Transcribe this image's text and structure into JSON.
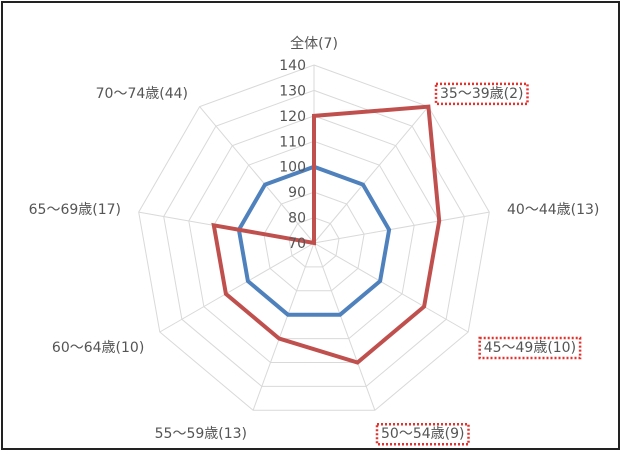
{
  "chart_data": {
    "type": "radar",
    "categories": [
      "全体(7)",
      "35～39歳(2)",
      "40～44歳(13)",
      "45～49歳(10)",
      "50～54歳(9)",
      "55～59歳(13)",
      "60～64歳(10)",
      "65～69歳(17)",
      "70～74歳(44)"
    ],
    "highlighted_categories": [
      1,
      3,
      4
    ],
    "ticks": [
      70,
      80,
      90,
      100,
      110,
      120,
      130,
      140
    ],
    "rlim": [
      70,
      140
    ],
    "grid": true,
    "series": [
      {
        "color": "#4f81bd",
        "values": [
          100,
          100,
          100,
          100,
          100,
          100,
          100,
          100,
          100
        ]
      },
      {
        "color": "#c0504d",
        "values": [
          120,
          140,
          120,
          120,
          120,
          110,
          110,
          110,
          70
        ]
      }
    ],
    "highlight_color": "#e5322d",
    "grid_color": "#d9d9d9"
  }
}
